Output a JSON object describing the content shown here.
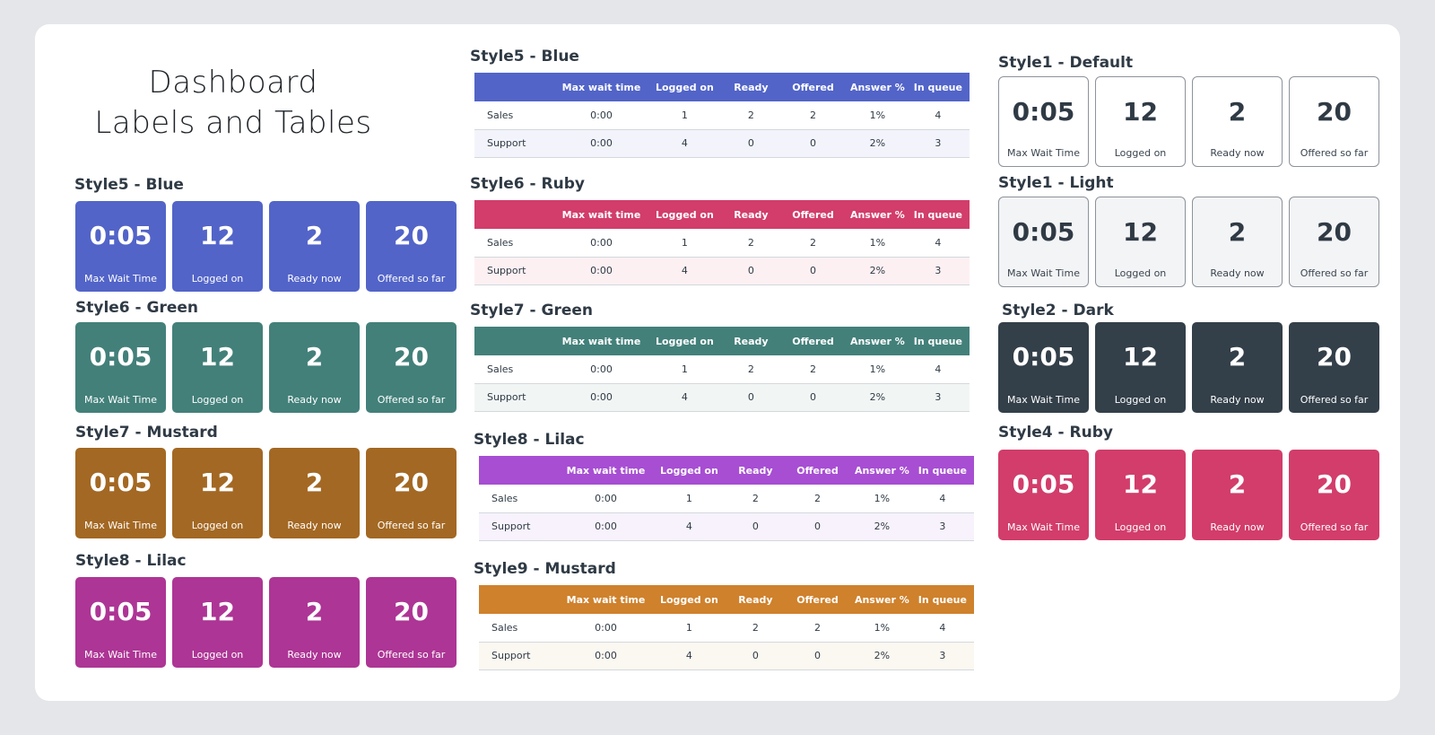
{
  "title": {
    "line1": "Dashboard",
    "line2": "Labels and Tables"
  },
  "tile_values": {
    "max_wait": "0:05",
    "logged_on": "12",
    "ready": "2",
    "offered": "20"
  },
  "tile_labels": {
    "max_wait": "Max Wait Time",
    "logged_on": "Logged on",
    "ready": "Ready now",
    "offered": "Offered so far"
  },
  "tile_sections": {
    "blue": {
      "label": "Style5 - Blue",
      "color": "#5264c8"
    },
    "green": {
      "label": "Style6 - Green",
      "color": "#43807a"
    },
    "mustard": {
      "label": "Style7 - Mustard",
      "color": "#a36823"
    },
    "lilac": {
      "label": "Style8 - Lilac",
      "color": "#ad3595"
    },
    "default": {
      "label": "Style1 - Default",
      "color": "#ffffff"
    },
    "light": {
      "label": "Style1 - Light",
      "color": "#f3f4f6"
    },
    "dark": {
      "label": "Style2 - Dark",
      "color": "#333f49"
    },
    "ruby": {
      "label": "Style4 - Ruby",
      "color": "#d23d6b"
    }
  },
  "table_headers": [
    "",
    "Max wait time",
    "Logged on",
    "Ready",
    "Offered",
    "Answer %",
    "In queue"
  ],
  "table_rows": [
    [
      "Sales",
      "0:00",
      "1",
      "2",
      "2",
      "1%",
      "4"
    ],
    [
      "Support",
      "0:00",
      "4",
      "0",
      "0",
      "2%",
      "3"
    ]
  ],
  "table_sections": {
    "blue": {
      "label": "Style5 - Blue",
      "header_color": "#5264c8",
      "stripe": "#f3f4fb"
    },
    "ruby": {
      "label": "Style6 - Ruby",
      "header_color": "#d23d6b",
      "stripe": "#fdf0f3"
    },
    "green": {
      "label": "Style7 - Green",
      "header_color": "#43807a",
      "stripe": "#f1f6f5"
    },
    "lilac": {
      "label": "Style8 - Lilac",
      "header_color": "#a74ed3",
      "stripe": "#f7f2fc"
    },
    "mustard": {
      "label": "Style9 - Mustard",
      "header_color": "#cf812c",
      "stripe": "#fbf7f1"
    }
  }
}
